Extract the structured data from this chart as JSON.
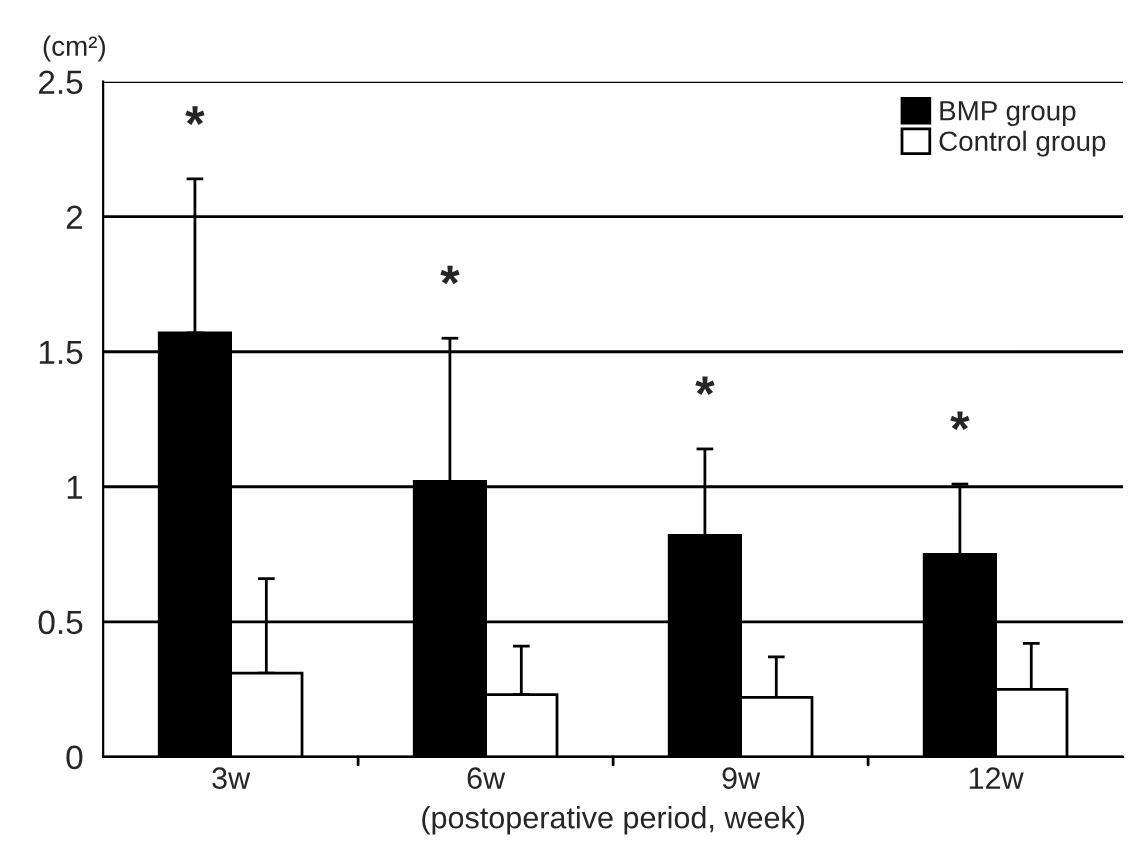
{
  "chart_data": {
    "type": "bar",
    "ylabel": "(cm²)",
    "xlabel": "(postoperative period, week)",
    "categories": [
      "3w",
      "6w",
      "9w",
      "12w"
    ],
    "series": [
      {
        "name": "BMP group",
        "color": "#000000",
        "values": [
          1.57,
          1.02,
          0.82,
          0.75
        ],
        "errors": [
          [
            1.57,
            2.14
          ],
          [
            1.02,
            1.55
          ],
          [
            0.82,
            1.14
          ],
          [
            0.75,
            1.01
          ]
        ]
      },
      {
        "name": "Control group",
        "color": "#ffffff",
        "values": [
          0.31,
          0.23,
          0.22,
          0.25
        ],
        "errors": [
          [
            0.31,
            0.66
          ],
          [
            0.23,
            0.41
          ],
          [
            0.22,
            0.37
          ],
          [
            0.25,
            0.42
          ]
        ]
      }
    ],
    "annotations": [
      "*",
      "*",
      "*",
      "*"
    ],
    "ylim": [
      0,
      2.5
    ],
    "yticks": [
      0,
      0.5,
      1,
      1.5,
      2,
      2.5
    ],
    "grid": "y",
    "legend": "top right"
  }
}
